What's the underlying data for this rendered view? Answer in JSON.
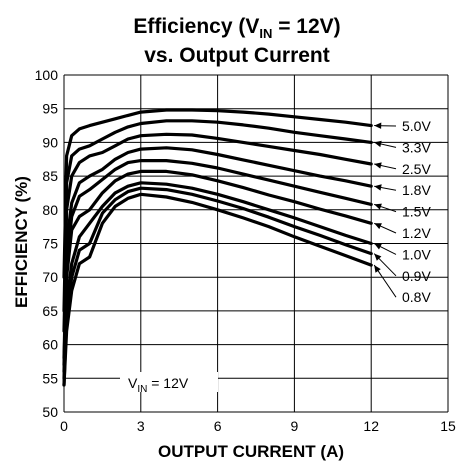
{
  "chart_data": {
    "type": "line",
    "title_line1_main": "Efficiency (V",
    "title_line1_sub": "IN",
    "title_line1_end": " = 12V)",
    "title_line2": "vs. Output Current",
    "xlabel": "OUTPUT CURRENT (A)",
    "ylabel": "EFFICIENCY (%)",
    "xlim": [
      0,
      15
    ],
    "ylim": [
      50,
      100
    ],
    "x_ticks": [
      "0",
      "3",
      "6",
      "9",
      "12",
      "15"
    ],
    "y_ticks": [
      "50",
      "55",
      "60",
      "65",
      "70",
      "75",
      "80",
      "85",
      "90",
      "95",
      "100"
    ],
    "grid": true,
    "annotation_main": "V",
    "annotation_sub": "IN",
    "annotation_end": " = 12V",
    "series": [
      {
        "name": "5.0V",
        "x": [
          0,
          0.1,
          0.3,
          0.6,
          1,
          1.5,
          2,
          2.5,
          3,
          4,
          5,
          6,
          7,
          8,
          9,
          10,
          11,
          12
        ],
        "y": [
          70,
          88,
          91,
          92,
          92.5,
          93,
          93.5,
          94,
          94.5,
          94.8,
          94.8,
          94.7,
          94.5,
          94.2,
          93.8,
          93.4,
          93,
          92.5
        ]
      },
      {
        "name": "3.3V",
        "x": [
          0,
          0.1,
          0.3,
          0.6,
          1,
          1.5,
          2,
          2.5,
          3,
          4,
          5,
          6,
          7,
          8,
          9,
          10,
          11,
          12
        ],
        "y": [
          65,
          84,
          88,
          89,
          89.5,
          90.5,
          91.5,
          92.3,
          92.8,
          93.2,
          93.2,
          93,
          92.6,
          92.1,
          91.5,
          91,
          90.5,
          90
        ]
      },
      {
        "name": "2.5V",
        "x": [
          0,
          0.1,
          0.3,
          0.6,
          1,
          1.5,
          2,
          2.5,
          3,
          4,
          5,
          6,
          7,
          8,
          9,
          10,
          11,
          12
        ],
        "y": [
          62,
          80,
          85,
          87,
          88,
          88.5,
          89.5,
          90.5,
          91,
          91.2,
          91.1,
          90.6,
          90,
          89.4,
          88.8,
          88.2,
          87.5,
          86.8
        ]
      },
      {
        "name": "1.8V",
        "x": [
          0,
          0.1,
          0.3,
          0.6,
          1,
          1.5,
          2,
          2.5,
          3,
          4,
          5,
          6,
          7,
          8,
          9,
          10,
          11,
          12
        ],
        "y": [
          58,
          75,
          81,
          84,
          85,
          86,
          87.5,
          88.5,
          89,
          89.2,
          88.9,
          88.2,
          87.4,
          86.6,
          85.8,
          85,
          84.3,
          83.5
        ]
      },
      {
        "name": "1.5V",
        "x": [
          0,
          0.1,
          0.3,
          0.6,
          1,
          1.5,
          2,
          2.5,
          3,
          4,
          5,
          6,
          7,
          8,
          9,
          10,
          11,
          12
        ],
        "y": [
          57,
          72,
          79,
          82,
          83,
          84.5,
          86,
          87,
          87.3,
          87.3,
          86.9,
          86.2,
          85.3,
          84.4,
          83.5,
          82.6,
          81.7,
          80.8
        ]
      },
      {
        "name": "1.2V",
        "x": [
          0,
          0.1,
          0.3,
          0.6,
          1,
          1.5,
          2,
          2.5,
          3,
          4,
          5,
          6,
          7,
          8,
          9,
          10,
          11,
          12
        ],
        "y": [
          56,
          70,
          77,
          79,
          80,
          82.5,
          84.3,
          85.3,
          85.7,
          85.7,
          85.2,
          84.3,
          83.3,
          82.2,
          81.2,
          80.1,
          79.1,
          78
        ]
      },
      {
        "name": "1.0V",
        "x": [
          0,
          0.1,
          0.3,
          0.6,
          1,
          1.5,
          2,
          2.5,
          3,
          4,
          5,
          6,
          7,
          8,
          9,
          10,
          11,
          12
        ],
        "y": [
          55,
          66,
          72,
          76,
          78,
          80.5,
          82.5,
          83.5,
          84,
          83.8,
          83.2,
          82.3,
          81.2,
          80,
          78.8,
          77.5,
          76.2,
          75
        ]
      },
      {
        "name": "0.9V",
        "x": [
          0,
          0.1,
          0.3,
          0.6,
          1,
          1.5,
          2,
          2.5,
          3,
          4,
          5,
          6,
          7,
          8,
          9,
          10,
          11,
          12
        ],
        "y": [
          54,
          64,
          70,
          74,
          75,
          79.5,
          81.5,
          82.7,
          83.2,
          83,
          82.3,
          81.3,
          80.2,
          78.9,
          77.5,
          76.2,
          74.8,
          73.5
        ]
      },
      {
        "name": "0.8V",
        "x": [
          0,
          0.1,
          0.3,
          0.6,
          1,
          1.5,
          2,
          2.5,
          3,
          4,
          5,
          6,
          7,
          8,
          9,
          10,
          11,
          12
        ],
        "y": [
          54,
          62,
          68,
          72,
          73,
          78,
          80.5,
          81.7,
          82.3,
          81.9,
          81.1,
          80,
          78.8,
          77.5,
          76,
          74.6,
          73.2,
          71.8
        ]
      }
    ],
    "legend_placement": "right"
  }
}
